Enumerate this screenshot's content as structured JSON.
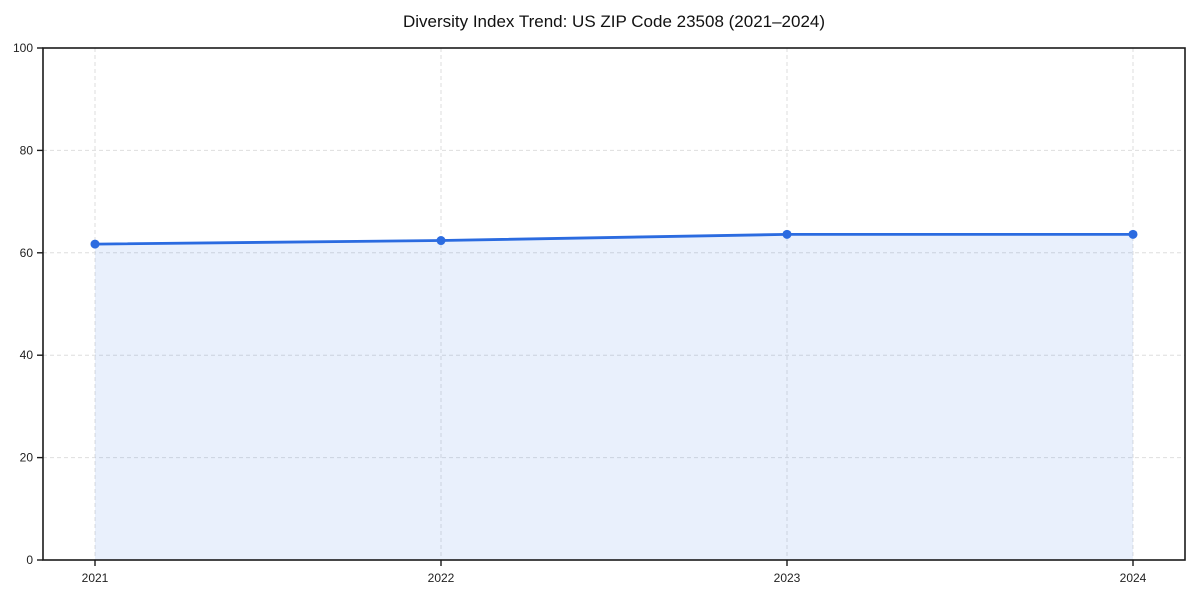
{
  "page": {
    "background": "#ffffff"
  },
  "chart_data": {
    "type": "area",
    "title": "Diversity Index Trend: US ZIP Code 23508 (2021–2024)",
    "series_name": "Diversity Index",
    "x": [
      2021,
      2022,
      2023,
      2024
    ],
    "values": [
      61.7,
      62.4,
      63.6,
      63.6
    ],
    "xlabel": "",
    "ylabel": "",
    "ylim": [
      0,
      100
    ],
    "yticks": [
      0,
      20,
      40,
      60,
      80,
      100
    ],
    "grid": true,
    "grid_style": "dashed",
    "legend": "none",
    "line_color": "#2b6be0",
    "fill_color": "rgba(43, 107, 224, 0.10)",
    "marker": "circle",
    "spine_color": "#1a1a1a",
    "grid_color": "#dedede"
  }
}
